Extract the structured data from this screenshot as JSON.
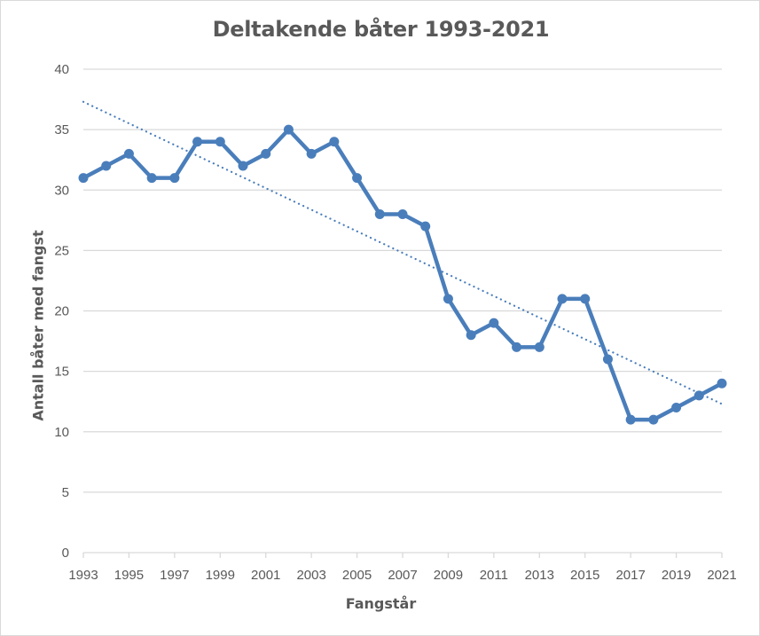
{
  "chart_data": {
    "type": "line",
    "title": "Deltakende båter 1993-2021",
    "xlabel": "Fangstår",
    "ylabel": "Antall båter med fangst",
    "x": [
      1993,
      1994,
      1995,
      1996,
      1997,
      1998,
      1999,
      2000,
      2001,
      2002,
      2003,
      2004,
      2005,
      2006,
      2007,
      2008,
      2009,
      2010,
      2011,
      2012,
      2013,
      2014,
      2015,
      2016,
      2017,
      2018,
      2019,
      2020,
      2021
    ],
    "series": [
      {
        "name": "Deltakende båter",
        "values": [
          31,
          32,
          33,
          31,
          31,
          34,
          34,
          32,
          33,
          35,
          33,
          34,
          31,
          28,
          28,
          27,
          21,
          18,
          19,
          17,
          17,
          21,
          21,
          16,
          11,
          11,
          12,
          13,
          14
        ],
        "color": "#4A7EBB",
        "marker": "circle"
      },
      {
        "name": "Lineær trend",
        "style": "dotted",
        "start": 37.3,
        "end": 12.3,
        "color": "#4A7EBB"
      }
    ],
    "x_tick_labels": [
      "1993",
      "1995",
      "1997",
      "1999",
      "2001",
      "2003",
      "2005",
      "2007",
      "2009",
      "2011",
      "2013",
      "2015",
      "2017",
      "2019",
      "2021"
    ],
    "y_tick_labels": [
      "0",
      "5",
      "10",
      "15",
      "20",
      "25",
      "30",
      "35",
      "40"
    ],
    "ylim": [
      0,
      40
    ],
    "xlim": [
      1993,
      2021
    ],
    "grid": true,
    "legend": "none"
  },
  "colors": {
    "series": "#4A7EBB",
    "grid": "#d9d9d9",
    "text": "#595959"
  }
}
